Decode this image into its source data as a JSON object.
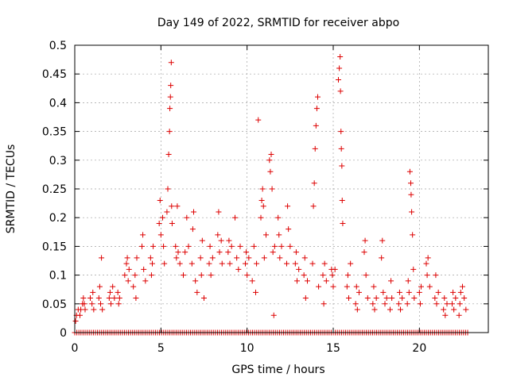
{
  "chart_data": {
    "type": "scatter",
    "title": "Day 149 of 2022, SRMTID for receiver abpo",
    "xlabel": "GPS time / hours",
    "ylabel": "SRMTID / TECUs",
    "xlim": [
      0,
      24
    ],
    "ylim": [
      0,
      0.5
    ],
    "x_ticks": [
      0,
      5,
      10,
      15,
      20
    ],
    "x_tick_labels": [
      "0",
      "5",
      "10",
      "15",
      "20"
    ],
    "y_ticks": [
      0,
      0.05,
      0.1,
      0.15,
      0.2,
      0.25,
      0.3,
      0.35,
      0.4,
      0.45,
      0.5
    ],
    "y_tick_labels": [
      "0",
      "0.05",
      "0.1",
      "0.15",
      "0.2",
      "0.25",
      "0.3",
      "0.35",
      "0.4",
      "0.45",
      "0.5"
    ],
    "grid": true,
    "marker": "plus",
    "series": [
      {
        "name": "SRMTID",
        "color": "#dd0000",
        "note": "points estimated from the plot; many points at y=0 along the full time range",
        "points": [
          [
            0.05,
            0.02
          ],
          [
            0.1,
            0.03
          ],
          [
            0.2,
            0.04
          ],
          [
            0.3,
            0.03
          ],
          [
            0.35,
            0.04
          ],
          [
            0.45,
            0.05
          ],
          [
            0.5,
            0.06
          ],
          [
            0.55,
            0.05
          ],
          [
            0.6,
            0.04
          ],
          [
            0.9,
            0.06
          ],
          [
            1.0,
            0.05
          ],
          [
            1.05,
            0.07
          ],
          [
            1.1,
            0.04
          ],
          [
            1.4,
            0.06
          ],
          [
            1.45,
            0.08
          ],
          [
            1.5,
            0.05
          ],
          [
            1.55,
            0.13
          ],
          [
            1.6,
            0.04
          ],
          [
            2.0,
            0.06
          ],
          [
            2.05,
            0.07
          ],
          [
            2.1,
            0.05
          ],
          [
            2.2,
            0.08
          ],
          [
            2.3,
            0.06
          ],
          [
            2.5,
            0.07
          ],
          [
            2.55,
            0.05
          ],
          [
            2.6,
            0.06
          ],
          [
            2.9,
            0.1
          ],
          [
            3.0,
            0.12
          ],
          [
            3.05,
            0.13
          ],
          [
            3.1,
            0.09
          ],
          [
            3.15,
            0.11
          ],
          [
            3.4,
            0.08
          ],
          [
            3.5,
            0.1
          ],
          [
            3.55,
            0.06
          ],
          [
            3.6,
            0.13
          ],
          [
            3.9,
            0.15
          ],
          [
            3.95,
            0.17
          ],
          [
            4.0,
            0.11
          ],
          [
            4.1,
            0.09
          ],
          [
            4.4,
            0.13
          ],
          [
            4.45,
            0.1
          ],
          [
            4.5,
            0.12
          ],
          [
            4.55,
            0.15
          ],
          [
            4.9,
            0.19
          ],
          [
            4.95,
            0.23
          ],
          [
            5.0,
            0.17
          ],
          [
            5.1,
            0.2
          ],
          [
            5.15,
            0.15
          ],
          [
            5.2,
            0.12
          ],
          [
            5.35,
            0.21
          ],
          [
            5.4,
            0.25
          ],
          [
            5.45,
            0.31
          ],
          [
            5.5,
            0.35
          ],
          [
            5.52,
            0.39
          ],
          [
            5.55,
            0.41
          ],
          [
            5.57,
            0.43
          ],
          [
            5.6,
            0.47
          ],
          [
            5.62,
            0.22
          ],
          [
            5.65,
            0.19
          ],
          [
            5.85,
            0.15
          ],
          [
            5.9,
            0.13
          ],
          [
            5.95,
            0.22
          ],
          [
            6.0,
            0.14
          ],
          [
            6.1,
            0.12
          ],
          [
            6.3,
            0.1
          ],
          [
            6.4,
            0.14
          ],
          [
            6.5,
            0.2
          ],
          [
            6.6,
            0.15
          ],
          [
            6.8,
            0.12
          ],
          [
            6.85,
            0.18
          ],
          [
            6.9,
            0.21
          ],
          [
            7.0,
            0.09
          ],
          [
            7.1,
            0.07
          ],
          [
            7.3,
            0.13
          ],
          [
            7.35,
            0.1
          ],
          [
            7.4,
            0.16
          ],
          [
            7.5,
            0.06
          ],
          [
            7.8,
            0.12
          ],
          [
            7.85,
            0.15
          ],
          [
            7.9,
            0.1
          ],
          [
            8.0,
            0.13
          ],
          [
            8.3,
            0.17
          ],
          [
            8.35,
            0.21
          ],
          [
            8.4,
            0.14
          ],
          [
            8.5,
            0.16
          ],
          [
            8.55,
            0.12
          ],
          [
            8.9,
            0.14
          ],
          [
            8.95,
            0.16
          ],
          [
            9.0,
            0.12
          ],
          [
            9.1,
            0.15
          ],
          [
            9.3,
            0.2
          ],
          [
            9.4,
            0.13
          ],
          [
            9.5,
            0.11
          ],
          [
            9.6,
            0.15
          ],
          [
            9.9,
            0.12
          ],
          [
            9.95,
            0.14
          ],
          [
            10.0,
            0.1
          ],
          [
            10.1,
            0.13
          ],
          [
            10.3,
            0.09
          ],
          [
            10.4,
            0.15
          ],
          [
            10.5,
            0.07
          ],
          [
            10.55,
            0.12
          ],
          [
            10.65,
            0.37
          ],
          [
            10.8,
            0.2
          ],
          [
            10.85,
            0.23
          ],
          [
            10.9,
            0.25
          ],
          [
            10.95,
            0.22
          ],
          [
            11.0,
            0.13
          ],
          [
            11.1,
            0.17
          ],
          [
            11.3,
            0.3
          ],
          [
            11.35,
            0.28
          ],
          [
            11.4,
            0.31
          ],
          [
            11.45,
            0.25
          ],
          [
            11.5,
            0.14
          ],
          [
            11.55,
            0.03
          ],
          [
            11.6,
            0.15
          ],
          [
            11.8,
            0.2
          ],
          [
            11.85,
            0.17
          ],
          [
            11.9,
            0.13
          ],
          [
            12.0,
            0.15
          ],
          [
            12.3,
            0.12
          ],
          [
            12.35,
            0.22
          ],
          [
            12.4,
            0.18
          ],
          [
            12.5,
            0.15
          ],
          [
            12.8,
            0.12
          ],
          [
            12.85,
            0.14
          ],
          [
            12.9,
            0.09
          ],
          [
            13.0,
            0.11
          ],
          [
            13.3,
            0.1
          ],
          [
            13.35,
            0.13
          ],
          [
            13.4,
            0.06
          ],
          [
            13.5,
            0.09
          ],
          [
            13.8,
            0.12
          ],
          [
            13.85,
            0.22
          ],
          [
            13.9,
            0.26
          ],
          [
            13.95,
            0.32
          ],
          [
            14.0,
            0.36
          ],
          [
            14.05,
            0.39
          ],
          [
            14.1,
            0.41
          ],
          [
            14.15,
            0.08
          ],
          [
            14.4,
            0.1
          ],
          [
            14.45,
            0.05
          ],
          [
            14.5,
            0.12
          ],
          [
            14.6,
            0.09
          ],
          [
            14.9,
            0.11
          ],
          [
            14.95,
            0.1
          ],
          [
            15.0,
            0.08
          ],
          [
            15.1,
            0.11
          ],
          [
            15.3,
            0.44
          ],
          [
            15.35,
            0.46
          ],
          [
            15.4,
            0.48
          ],
          [
            15.42,
            0.42
          ],
          [
            15.45,
            0.35
          ],
          [
            15.47,
            0.32
          ],
          [
            15.5,
            0.29
          ],
          [
            15.52,
            0.23
          ],
          [
            15.55,
            0.19
          ],
          [
            15.8,
            0.08
          ],
          [
            15.85,
            0.1
          ],
          [
            15.9,
            0.06
          ],
          [
            16.0,
            0.12
          ],
          [
            16.3,
            0.05
          ],
          [
            16.35,
            0.08
          ],
          [
            16.4,
            0.04
          ],
          [
            16.5,
            0.07
          ],
          [
            16.8,
            0.14
          ],
          [
            16.85,
            0.16
          ],
          [
            16.9,
            0.1
          ],
          [
            17.0,
            0.06
          ],
          [
            17.3,
            0.05
          ],
          [
            17.35,
            0.08
          ],
          [
            17.4,
            0.04
          ],
          [
            17.5,
            0.06
          ],
          [
            17.8,
            0.13
          ],
          [
            17.85,
            0.16
          ],
          [
            17.9,
            0.07
          ],
          [
            18.0,
            0.05
          ],
          [
            18.1,
            0.06
          ],
          [
            18.3,
            0.04
          ],
          [
            18.35,
            0.09
          ],
          [
            18.4,
            0.06
          ],
          [
            18.8,
            0.05
          ],
          [
            18.85,
            0.07
          ],
          [
            18.9,
            0.04
          ],
          [
            19.0,
            0.06
          ],
          [
            19.3,
            0.05
          ],
          [
            19.35,
            0.09
          ],
          [
            19.4,
            0.07
          ],
          [
            19.45,
            0.28
          ],
          [
            19.5,
            0.26
          ],
          [
            19.52,
            0.24
          ],
          [
            19.55,
            0.21
          ],
          [
            19.6,
            0.17
          ],
          [
            19.65,
            0.11
          ],
          [
            19.7,
            0.06
          ],
          [
            20.0,
            0.07
          ],
          [
            20.05,
            0.05
          ],
          [
            20.1,
            0.08
          ],
          [
            20.4,
            0.12
          ],
          [
            20.45,
            0.1
          ],
          [
            20.5,
            0.13
          ],
          [
            20.6,
            0.08
          ],
          [
            20.9,
            0.06
          ],
          [
            20.95,
            0.1
          ],
          [
            21.0,
            0.05
          ],
          [
            21.1,
            0.07
          ],
          [
            21.4,
            0.04
          ],
          [
            21.45,
            0.06
          ],
          [
            21.5,
            0.03
          ],
          [
            21.6,
            0.05
          ],
          [
            21.9,
            0.05
          ],
          [
            21.95,
            0.07
          ],
          [
            22.0,
            0.04
          ],
          [
            22.1,
            0.06
          ],
          [
            22.3,
            0.03
          ],
          [
            22.35,
            0.05
          ],
          [
            22.4,
            0.07
          ],
          [
            22.5,
            0.08
          ],
          [
            22.6,
            0.06
          ],
          [
            22.7,
            0.04
          ]
        ],
        "zero_band": {
          "y": 0,
          "x_start": 0,
          "x_end": 22.8,
          "step": 0.12
        }
      }
    ]
  }
}
